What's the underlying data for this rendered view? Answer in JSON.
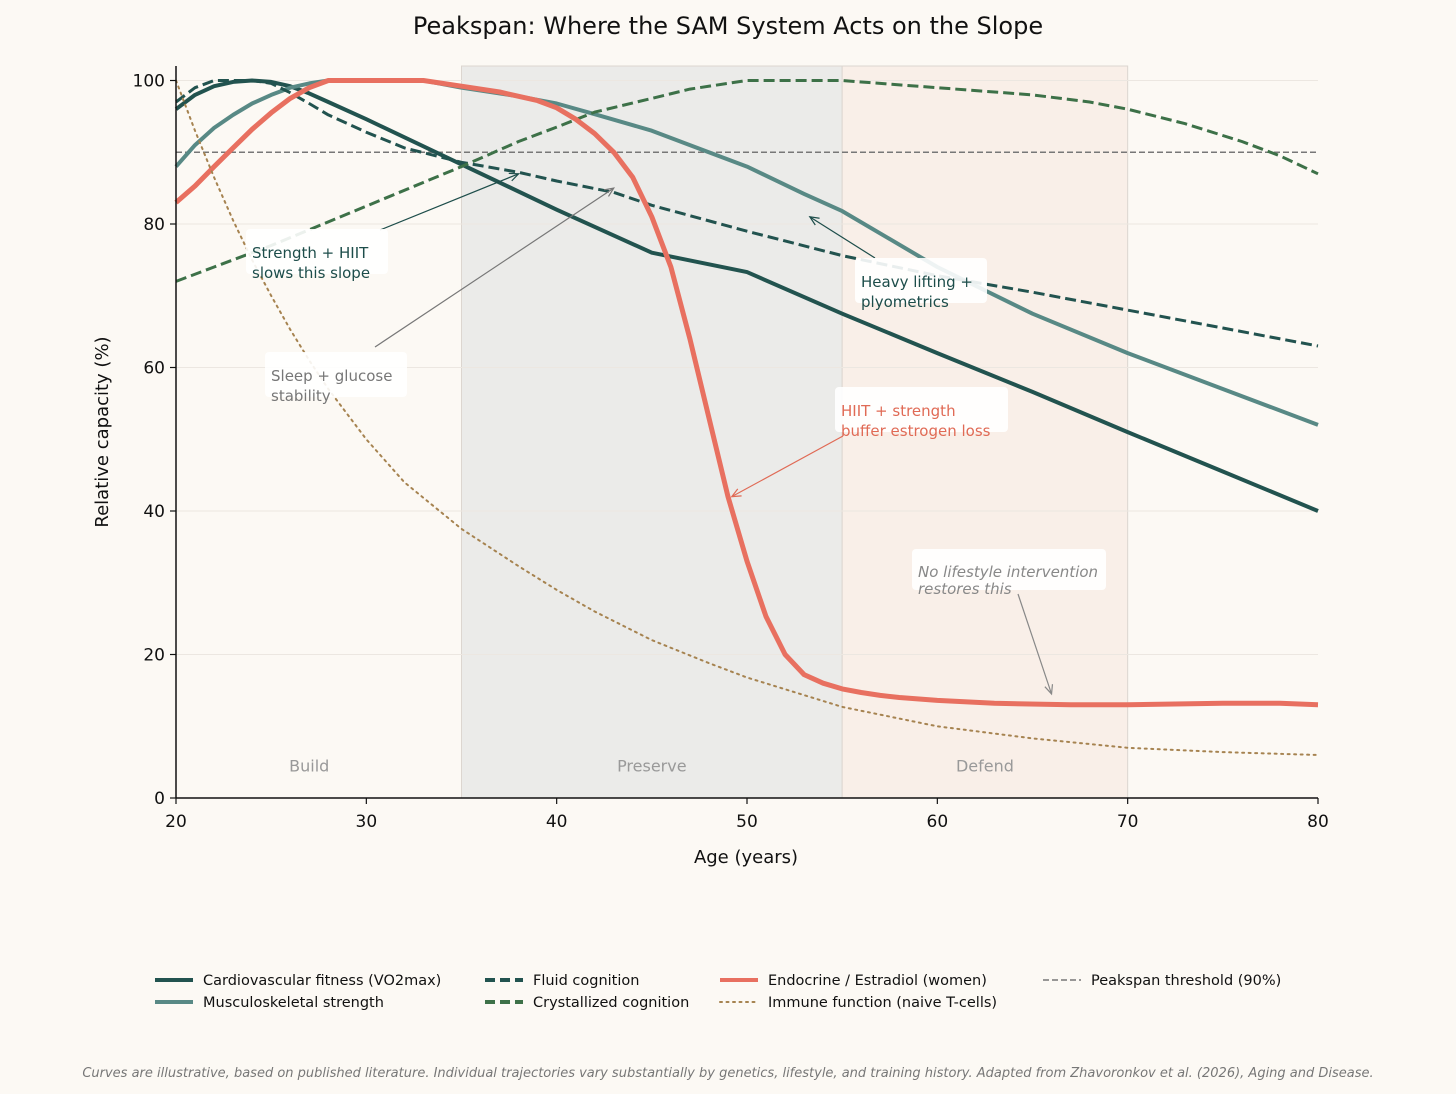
{
  "chart_data": {
    "type": "line",
    "title": "Peakspan: Where the SAM System Acts on the Slope",
    "xlabel": "Age (years)",
    "ylabel": "Relative capacity (%)",
    "xlim": [
      20,
      80
    ],
    "ylim": [
      0,
      102
    ],
    "xticks": [
      20,
      30,
      40,
      50,
      60,
      70,
      80
    ],
    "yticks": [
      0,
      20,
      40,
      60,
      80,
      100
    ],
    "grid": "horizontal",
    "regions": [
      {
        "label": "Build",
        "from": 20,
        "to": 35,
        "color": "#fcf9f4"
      },
      {
        "label": "Preserve",
        "from": 35,
        "to": 55,
        "color": "#ebebe9"
      },
      {
        "label": "Defend",
        "from": 55,
        "to": 70,
        "color": "#f9efe8"
      }
    ],
    "threshold": {
      "name": "Peakspan threshold (90%)",
      "y": 90,
      "color": "#777777"
    },
    "series": [
      {
        "name": "Cardiovascular fitness (VO2max)",
        "color": "#22534f",
        "style": "solid",
        "width": 4,
        "points": [
          [
            20,
            96
          ],
          [
            21,
            98
          ],
          [
            22,
            99.2
          ],
          [
            23,
            99.8
          ],
          [
            24,
            100
          ],
          [
            25,
            99.8
          ],
          [
            26,
            99.2
          ],
          [
            27,
            98.2
          ],
          [
            28,
            97
          ],
          [
            30,
            94.6
          ],
          [
            35,
            88.3
          ],
          [
            40,
            82
          ],
          [
            45,
            76
          ],
          [
            50,
            73.3
          ],
          [
            55,
            67.5
          ],
          [
            60,
            62
          ],
          [
            65,
            56.6
          ],
          [
            70,
            51
          ],
          [
            75,
            45.5
          ],
          [
            80,
            40
          ]
        ]
      },
      {
        "name": "Musculoskeletal strength",
        "color": "#588985",
        "style": "solid",
        "width": 4,
        "points": [
          [
            20,
            88
          ],
          [
            21,
            91
          ],
          [
            22,
            93.4
          ],
          [
            23,
            95.2
          ],
          [
            24,
            96.8
          ],
          [
            25,
            98
          ],
          [
            26,
            99
          ],
          [
            27,
            99.6
          ],
          [
            28,
            100
          ],
          [
            30,
            100
          ],
          [
            33,
            100
          ],
          [
            35,
            99
          ],
          [
            38,
            97.8
          ],
          [
            40,
            96.8
          ],
          [
            42,
            95.3
          ],
          [
            45,
            93
          ],
          [
            47,
            91
          ],
          [
            50,
            88
          ],
          [
            53,
            84.2
          ],
          [
            55,
            81.8
          ],
          [
            60,
            74
          ],
          [
            65,
            67.5
          ],
          [
            70,
            62
          ],
          [
            75,
            57
          ],
          [
            80,
            52
          ]
        ]
      },
      {
        "name": "Fluid cognition",
        "color": "#22534f",
        "style": "dashed",
        "width": 3,
        "points": [
          [
            20,
            97
          ],
          [
            21,
            99
          ],
          [
            22,
            100
          ],
          [
            24,
            100
          ],
          [
            25,
            99.6
          ],
          [
            26,
            98.3
          ],
          [
            27,
            96.8
          ],
          [
            28,
            95.2
          ],
          [
            30,
            92.8
          ],
          [
            32,
            90.6
          ],
          [
            35,
            88.6
          ],
          [
            38,
            87.2
          ],
          [
            40,
            86
          ],
          [
            43,
            84.4
          ],
          [
            45,
            82.6
          ],
          [
            50,
            79
          ],
          [
            55,
            75.6
          ],
          [
            60,
            72.8
          ],
          [
            65,
            70.5
          ],
          [
            70,
            68
          ],
          [
            75,
            65.5
          ],
          [
            80,
            63
          ]
        ]
      },
      {
        "name": "Crystallized cognition",
        "color": "#3d7148",
        "style": "dashed",
        "width": 3,
        "points": [
          [
            20,
            72
          ],
          [
            22,
            74
          ],
          [
            25,
            77
          ],
          [
            30,
            82.5
          ],
          [
            35,
            88
          ],
          [
            38,
            91.5
          ],
          [
            40,
            93.5
          ],
          [
            42,
            95.6
          ],
          [
            45,
            97.5
          ],
          [
            47,
            98.8
          ],
          [
            50,
            100
          ],
          [
            55,
            100
          ],
          [
            57,
            99.6
          ],
          [
            60,
            99
          ],
          [
            65,
            98
          ],
          [
            68,
            97
          ],
          [
            70,
            96
          ],
          [
            73,
            94
          ],
          [
            76,
            91.5
          ],
          [
            78,
            89.5
          ],
          [
            80,
            87
          ]
        ]
      },
      {
        "name": "Endocrine / Estradiol (women)",
        "color": "#e87060",
        "style": "solid",
        "width": 5,
        "points": [
          [
            20,
            83
          ],
          [
            21,
            85.3
          ],
          [
            22,
            88
          ],
          [
            23,
            90.6
          ],
          [
            24,
            93.2
          ],
          [
            25,
            95.5
          ],
          [
            26,
            97.5
          ],
          [
            27,
            99
          ],
          [
            28,
            100
          ],
          [
            33,
            100
          ],
          [
            35,
            99.2
          ],
          [
            37,
            98.4
          ],
          [
            38,
            97.8
          ],
          [
            39,
            97.2
          ],
          [
            40,
            96.2
          ],
          [
            41,
            94.6
          ],
          [
            42,
            92.6
          ],
          [
            43,
            90
          ],
          [
            44,
            86.5
          ],
          [
            45,
            81
          ],
          [
            46,
            74
          ],
          [
            47,
            64
          ],
          [
            48,
            53
          ],
          [
            49,
            42
          ],
          [
            50,
            33
          ],
          [
            51,
            25.3
          ],
          [
            52,
            20
          ],
          [
            53,
            17.2
          ],
          [
            54,
            16
          ],
          [
            55,
            15.2
          ],
          [
            56,
            14.7
          ],
          [
            57,
            14.3
          ],
          [
            58,
            14
          ],
          [
            60,
            13.6
          ],
          [
            63,
            13.2
          ],
          [
            67,
            13
          ],
          [
            70,
            13
          ],
          [
            75,
            13.2
          ],
          [
            78,
            13.2
          ],
          [
            80,
            13
          ]
        ]
      },
      {
        "name": "Immune function (naive T-cells)",
        "color": "#a68350",
        "style": "dotted",
        "width": 2,
        "points": [
          [
            20,
            100
          ],
          [
            21,
            93
          ],
          [
            22,
            86.5
          ],
          [
            23,
            80.5
          ],
          [
            24,
            75
          ],
          [
            25,
            70
          ],
          [
            26,
            65.3
          ],
          [
            27,
            61
          ],
          [
            28,
            57
          ],
          [
            30,
            50
          ],
          [
            32,
            44
          ],
          [
            35,
            37.5
          ],
          [
            38,
            32.3
          ],
          [
            40,
            29
          ],
          [
            42,
            26
          ],
          [
            45,
            22
          ],
          [
            48,
            18.8
          ],
          [
            50,
            16.8
          ],
          [
            55,
            12.7
          ],
          [
            60,
            10
          ],
          [
            65,
            8.3
          ],
          [
            70,
            7
          ],
          [
            75,
            6.4
          ],
          [
            80,
            6
          ]
        ]
      }
    ],
    "annotations": [
      {
        "text": [
          "Strength + HIIT",
          "slows this slope"
        ],
        "color": "#1d4d4a",
        "target": [
          38,
          87
        ]
      },
      {
        "text": [
          "Sleep + glucose",
          "stability"
        ],
        "color": "#777777",
        "target": [
          43,
          85
        ]
      },
      {
        "text": [
          "Heavy lifting +",
          "plyometrics"
        ],
        "color": "#1d4d4a",
        "target": [
          53.3,
          81
        ]
      },
      {
        "text": [
          "HIIT + strength",
          "buffer estrogen loss"
        ],
        "color": "#e06a55",
        "target": [
          49.2,
          42
        ]
      },
      {
        "text": [
          "No lifestyle intervention",
          "restores this"
        ],
        "color": "#888888",
        "italic": true,
        "target": [
          66,
          14.5
        ]
      }
    ]
  },
  "footnote": "Curves are illustrative, based on published literature. Individual trajectories vary substantially by genetics, lifestyle, and training history. Adapted from Zhavoronkov et al. (2026), Aging and Disease."
}
